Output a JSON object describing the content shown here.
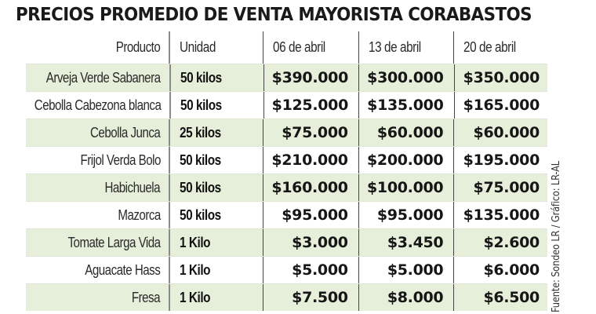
{
  "title": "PRECIOS PROMEDIO DE VENTA MAYORISTA CORABASTOS",
  "source": "Fuente: Sondeo LR / Gráfico: LR-AL",
  "colors": {
    "row_highlight": "#e6efda",
    "text": "#161616"
  },
  "table": {
    "headers": [
      "Producto",
      "Unidad",
      "06 de abril",
      "13 de abril",
      "20 de abril"
    ],
    "rows": [
      {
        "producto": "Arveja Verde Sabanera",
        "unidad": "50 kilos",
        "p06": "$390.000",
        "p13": "$300.000",
        "p20": "$350.000"
      },
      {
        "producto": "Cebolla Cabezona blanca",
        "unidad": "50 kilos",
        "p06": "$125.000",
        "p13": "$135.000",
        "p20": "$165.000"
      },
      {
        "producto": "Cebolla Junca",
        "unidad": "25 kilos",
        "p06": "$75.000",
        "p13": "$60.000",
        "p20": "$60.000"
      },
      {
        "producto": "Frijol Verda Bolo",
        "unidad": "50 kilos",
        "p06": "$210.000",
        "p13": "$200.000",
        "p20": "$195.000"
      },
      {
        "producto": "Habichuela",
        "unidad": "50 kilos",
        "p06": "$160.000",
        "p13": "$100.000",
        "p20": "$75.000"
      },
      {
        "producto": "Mazorca",
        "unidad": "50 kilos",
        "p06": "$95.000",
        "p13": "$95.000",
        "p20": "$135.000"
      },
      {
        "producto": "Tomate Larga Vida",
        "unidad": "1 Kilo",
        "p06": "$3.000",
        "p13": "$3.450",
        "p20": "$2.600"
      },
      {
        "producto": "Aguacate Hass",
        "unidad": "1 Kilo",
        "p06": "$5.000",
        "p13": "$5.000",
        "p20": "$6.000"
      },
      {
        "producto": "Fresa",
        "unidad": "1 Kilo",
        "p06": "$7.500",
        "p13": "$8.000",
        "p20": "$6.500"
      }
    ]
  }
}
